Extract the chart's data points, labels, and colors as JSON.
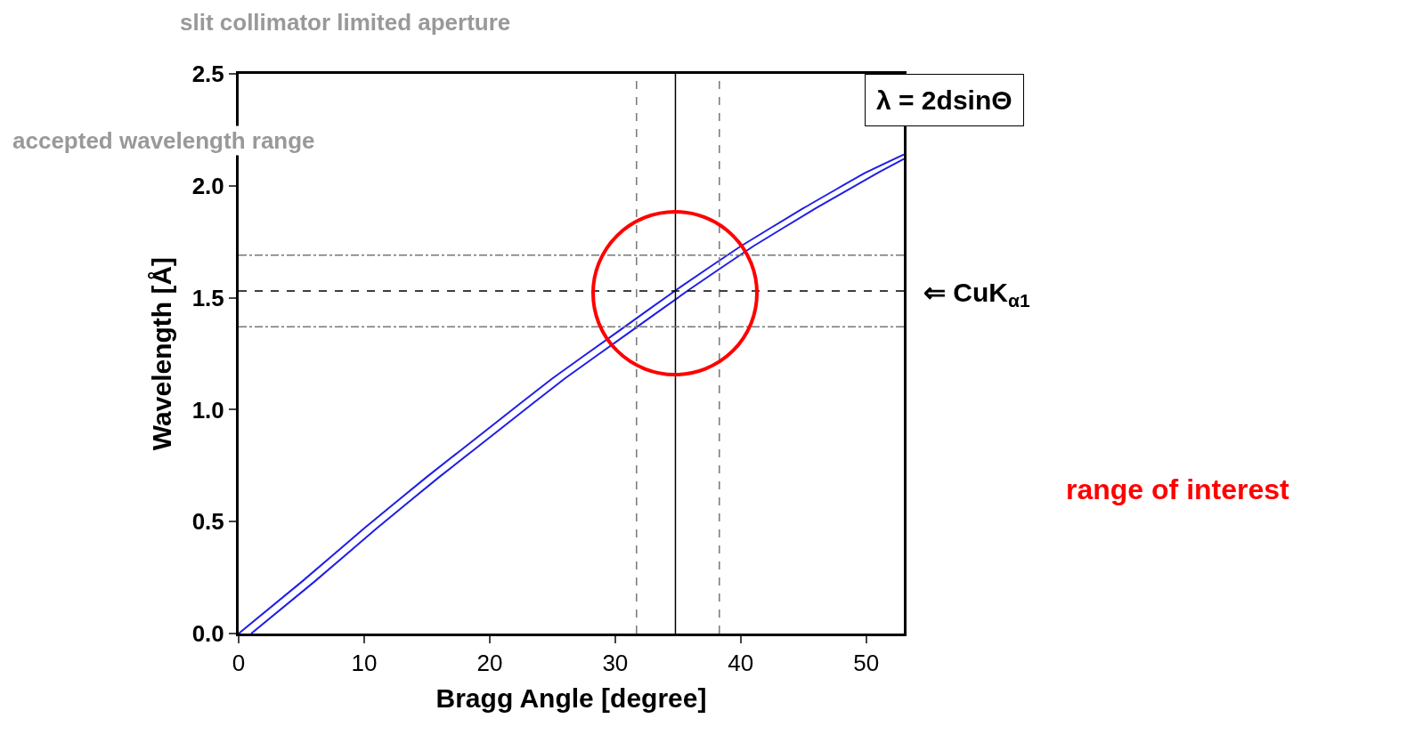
{
  "chart_data": {
    "type": "line",
    "xlabel": "Bragg Angle [degree]",
    "ylabel": "Wavelength [Å]",
    "xlim": [
      0,
      53
    ],
    "xticks": [
      0,
      10,
      20,
      30,
      40,
      50
    ],
    "ylim": [
      0,
      2.5
    ],
    "yticks": [
      {
        "value": 0,
        "label": "0.0"
      },
      0.5,
      {
        "value": 1,
        "label": "1.0"
      },
      1.5,
      {
        "value": 2,
        "label": "2.0"
      },
      2.5
    ],
    "series": [
      {
        "color": "#1f1fe6",
        "x": [
          0,
          5,
          10,
          15,
          20,
          25,
          30,
          35,
          40,
          45,
          50,
          53
        ],
        "values": [
          0,
          0.23,
          0.47,
          0.7,
          0.92,
          1.14,
          1.34,
          1.54,
          1.73,
          1.9,
          2.06,
          2.14
        ]
      },
      {
        "color": "#1f1fe6",
        "x": [
          1,
          6,
          11,
          16,
          21,
          26,
          31,
          36,
          41,
          46,
          51,
          53
        ],
        "values": [
          0,
          0.23,
          0.47,
          0.7,
          0.92,
          1.14,
          1.34,
          1.54,
          1.73,
          1.9,
          2.06,
          2.12
        ]
      }
    ],
    "marker": "none",
    "line_style": "solid",
    "ref_lines": [
      {
        "axis": "x",
        "value": 31.7,
        "color": "#777777",
        "line_style": "dashed"
      },
      {
        "axis": "x",
        "value": 34.8,
        "color": "#000000",
        "line_style": "solid"
      },
      {
        "axis": "x",
        "value": 38.3,
        "color": "#777777",
        "line_style": "dashed"
      },
      {
        "axis": "y",
        "value": 1.69,
        "color": "#777777",
        "line_style": "dashdot"
      },
      {
        "axis": "y",
        "value": 1.53,
        "color": "#000000",
        "line_style": "dashed"
      },
      {
        "axis": "y",
        "value": 1.37,
        "color": "#777777",
        "line_style": "dashdot"
      }
    ],
    "annotations": [
      "slit collimator limited aperture",
      "accepted wavelength range",
      "λ = 2dsinΘ",
      "⇐ CuK$_{α1}$",
      "range of interest"
    ]
  }
}
